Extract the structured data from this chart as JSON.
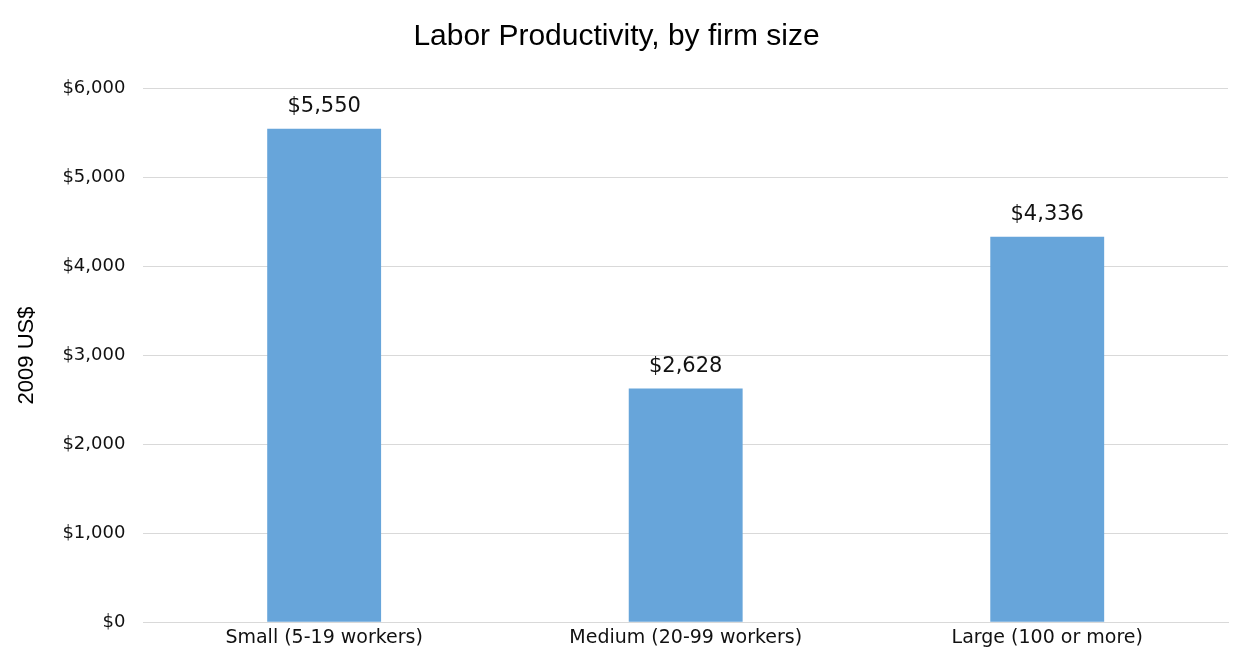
{
  "chart_data": {
    "type": "bar",
    "title": "Labor Productivity, by firm size",
    "ylabel": "2009 US$",
    "categories": [
      "Small (5-19 workers)",
      "Medium (20-99 workers)",
      "Large (100 or more)"
    ],
    "values": [
      5550,
      2628,
      4336
    ],
    "color": "#67a5da",
    "value_labels": [
      "$5,550",
      "$2,628",
      "$4,336"
    ],
    "ylim": [
      0,
      6000
    ],
    "yticks": [
      {
        "value": 0,
        "label": "$0"
      },
      {
        "value": 1000,
        "label": "$1,000"
      },
      {
        "value": 2000,
        "label": "$2,000"
      },
      {
        "value": 3000,
        "label": "$3,000"
      },
      {
        "value": 4000,
        "label": "$4,000"
      },
      {
        "value": 5000,
        "label": "$5,000"
      },
      {
        "value": 6000,
        "label": "$6,000"
      }
    ],
    "grid": "y"
  }
}
